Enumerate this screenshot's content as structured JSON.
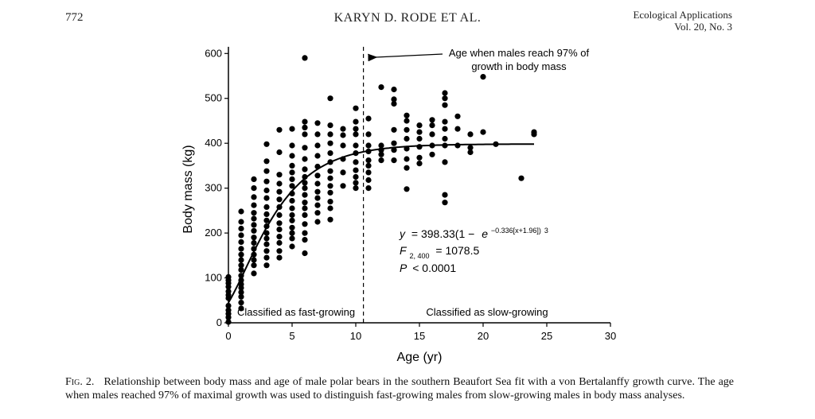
{
  "header": {
    "page_number": "772",
    "running_head": "KARYN D. RODE ET AL.",
    "journal_name": "Ecological Applications",
    "volume": "Vol. 20, No. 3"
  },
  "chart_data": {
    "type": "scatter",
    "xlabel": "Age (yr)",
    "ylabel": "Body mass (kg)",
    "xlim": [
      0,
      30
    ],
    "ylim": [
      0,
      620
    ],
    "xticks": [
      0,
      5,
      10,
      15,
      20,
      25,
      30
    ],
    "yticks": [
      0,
      100,
      200,
      300,
      400,
      500,
      600
    ],
    "grid": false,
    "legend": "none",
    "points": [
      [
        0,
        2
      ],
      [
        0,
        12
      ],
      [
        0,
        20
      ],
      [
        0,
        28
      ],
      [
        0,
        38
      ],
      [
        0,
        55
      ],
      [
        0,
        62
      ],
      [
        0,
        70
      ],
      [
        0,
        80
      ],
      [
        0,
        88
      ],
      [
        0,
        95
      ],
      [
        0,
        102
      ],
      [
        1,
        32
      ],
      [
        1,
        45
      ],
      [
        1,
        58
      ],
      [
        1,
        68
      ],
      [
        1,
        78
      ],
      [
        1,
        86
      ],
      [
        1,
        95
      ],
      [
        1,
        105
      ],
      [
        1,
        118
      ],
      [
        1,
        128
      ],
      [
        1,
        140
      ],
      [
        1,
        152
      ],
      [
        1,
        165
      ],
      [
        1,
        180
      ],
      [
        1,
        195
      ],
      [
        1,
        210
      ],
      [
        1,
        225
      ],
      [
        1,
        248
      ],
      [
        2,
        110
      ],
      [
        2,
        128
      ],
      [
        2,
        140
      ],
      [
        2,
        152
      ],
      [
        2,
        165
      ],
      [
        2,
        178
      ],
      [
        2,
        190
      ],
      [
        2,
        205
      ],
      [
        2,
        218
      ],
      [
        2,
        232
      ],
      [
        2,
        245
      ],
      [
        2,
        262
      ],
      [
        2,
        280
      ],
      [
        2,
        300
      ],
      [
        2,
        320
      ],
      [
        3,
        128
      ],
      [
        3,
        145
      ],
      [
        3,
        160
      ],
      [
        3,
        175
      ],
      [
        3,
        188
      ],
      [
        3,
        200
      ],
      [
        3,
        215
      ],
      [
        3,
        228
      ],
      [
        3,
        242
      ],
      [
        3,
        258
      ],
      [
        3,
        278
      ],
      [
        3,
        295
      ],
      [
        3,
        315
      ],
      [
        3,
        338
      ],
      [
        3,
        360
      ],
      [
        3,
        398
      ],
      [
        4,
        145
      ],
      [
        4,
        160
      ],
      [
        4,
        178
      ],
      [
        4,
        192
      ],
      [
        4,
        208
      ],
      [
        4,
        222
      ],
      [
        4,
        240
      ],
      [
        4,
        258
      ],
      [
        4,
        275
      ],
      [
        4,
        292
      ],
      [
        4,
        310
      ],
      [
        4,
        330
      ],
      [
        4,
        380
      ],
      [
        4,
        430
      ],
      [
        5,
        170
      ],
      [
        5,
        188
      ],
      [
        5,
        200
      ],
      [
        5,
        212
      ],
      [
        5,
        228
      ],
      [
        5,
        240
      ],
      [
        5,
        255
      ],
      [
        5,
        272
      ],
      [
        5,
        288
      ],
      [
        5,
        305
      ],
      [
        5,
        320
      ],
      [
        5,
        335
      ],
      [
        5,
        350
      ],
      [
        5,
        372
      ],
      [
        5,
        395
      ],
      [
        5,
        432
      ],
      [
        6,
        155
      ],
      [
        6,
        185
      ],
      [
        6,
        200
      ],
      [
        6,
        220
      ],
      [
        6,
        240
      ],
      [
        6,
        255
      ],
      [
        6,
        268
      ],
      [
        6,
        285
      ],
      [
        6,
        300
      ],
      [
        6,
        312
      ],
      [
        6,
        325
      ],
      [
        6,
        342
      ],
      [
        6,
        365
      ],
      [
        6,
        390
      ],
      [
        6,
        420
      ],
      [
        6,
        435
      ],
      [
        6,
        448
      ],
      [
        6,
        590
      ],
      [
        7,
        225
      ],
      [
        7,
        245
      ],
      [
        7,
        262
      ],
      [
        7,
        278
      ],
      [
        7,
        292
      ],
      [
        7,
        310
      ],
      [
        7,
        328
      ],
      [
        7,
        348
      ],
      [
        7,
        372
      ],
      [
        7,
        395
      ],
      [
        7,
        420
      ],
      [
        7,
        445
      ],
      [
        8,
        230
      ],
      [
        8,
        255
      ],
      [
        8,
        270
      ],
      [
        8,
        290
      ],
      [
        8,
        305
      ],
      [
        8,
        322
      ],
      [
        8,
        338
      ],
      [
        8,
        358
      ],
      [
        8,
        378
      ],
      [
        8,
        400
      ],
      [
        8,
        420
      ],
      [
        8,
        440
      ],
      [
        8,
        500
      ],
      [
        9,
        305
      ],
      [
        9,
        335
      ],
      [
        9,
        365
      ],
      [
        9,
        395
      ],
      [
        9,
        418
      ],
      [
        9,
        432
      ],
      [
        10,
        300
      ],
      [
        10,
        312
      ],
      [
        10,
        325
      ],
      [
        10,
        340
      ],
      [
        10,
        358
      ],
      [
        10,
        378
      ],
      [
        10,
        395
      ],
      [
        10,
        420
      ],
      [
        10,
        432
      ],
      [
        10,
        448
      ],
      [
        10,
        478
      ],
      [
        11,
        300
      ],
      [
        11,
        318
      ],
      [
        11,
        335
      ],
      [
        11,
        350
      ],
      [
        11,
        362
      ],
      [
        11,
        382
      ],
      [
        11,
        395
      ],
      [
        11,
        420
      ],
      [
        11,
        455
      ],
      [
        12,
        362
      ],
      [
        12,
        375
      ],
      [
        12,
        385
      ],
      [
        12,
        395
      ],
      [
        12,
        525
      ],
      [
        13,
        362
      ],
      [
        13,
        385
      ],
      [
        13,
        400
      ],
      [
        13,
        430
      ],
      [
        13,
        488
      ],
      [
        13,
        498
      ],
      [
        13,
        520
      ],
      [
        14,
        298
      ],
      [
        14,
        345
      ],
      [
        14,
        365
      ],
      [
        14,
        388
      ],
      [
        14,
        410
      ],
      [
        14,
        430
      ],
      [
        14,
        450
      ],
      [
        14,
        462
      ],
      [
        15,
        355
      ],
      [
        15,
        368
      ],
      [
        15,
        392
      ],
      [
        15,
        410
      ],
      [
        15,
        425
      ],
      [
        15,
        440
      ],
      [
        16,
        375
      ],
      [
        16,
        395
      ],
      [
        16,
        420
      ],
      [
        16,
        440
      ],
      [
        16,
        452
      ],
      [
        17,
        268
      ],
      [
        17,
        285
      ],
      [
        17,
        358
      ],
      [
        17,
        395
      ],
      [
        17,
        410
      ],
      [
        17,
        432
      ],
      [
        17,
        448
      ],
      [
        17,
        485
      ],
      [
        17,
        500
      ],
      [
        17,
        512
      ],
      [
        18,
        395
      ],
      [
        18,
        432
      ],
      [
        18,
        460
      ],
      [
        19,
        380
      ],
      [
        19,
        390
      ],
      [
        19,
        420
      ],
      [
        20,
        425
      ],
      [
        20,
        548
      ],
      [
        21,
        398
      ],
      [
        23,
        322
      ],
      [
        24,
        420
      ],
      [
        24,
        425
      ]
    ],
    "curve": {
      "model": "von Bertalanffy",
      "asymptote": 398.33,
      "k": 0.336,
      "t0": -1.96,
      "exponent": 3,
      "x_range": [
        0,
        24
      ]
    },
    "threshold_line": {
      "x": 10.6
    },
    "annotations": {
      "arrow_label_line1": "Age when males reach 97% of",
      "arrow_label_line2": "growth in body mass",
      "left_region": "Classified as fast-growing",
      "right_region": "Classified as slow-growing"
    },
    "equation": {
      "y_label": "y",
      "eq_body": "= 398.33(1 −",
      "e_label": "e",
      "exp_text": "−0.336[x+1.96])",
      "power": "3",
      "f_label": "F",
      "f_sub": "2, 400",
      "f_value": "= 1078.5",
      "p_label": "P",
      "p_value": "< 0.0001"
    }
  },
  "caption": {
    "label": "Fig. 2.",
    "text": "Relationship between body mass and age of male polar bears in the southern Beaufort Sea fit with a von Bertalanffy growth curve. The age when males reached 97% of maximal growth was used to distinguish fast-growing males from slow-growing males in body mass analyses."
  }
}
